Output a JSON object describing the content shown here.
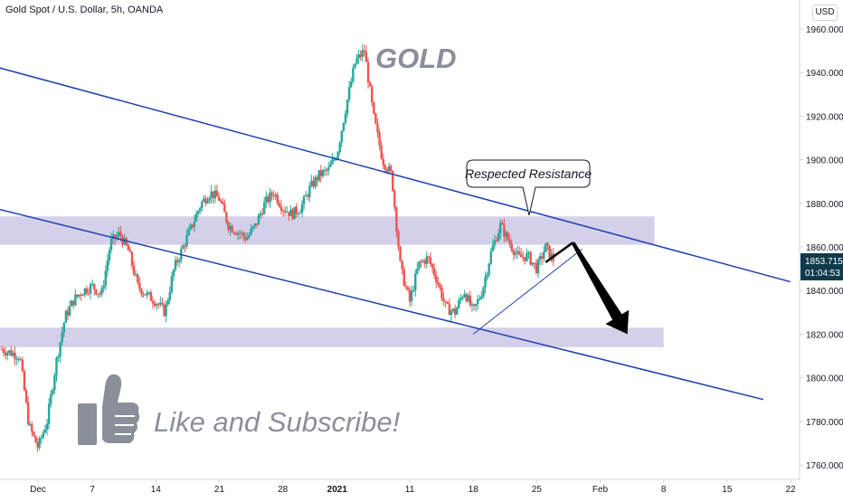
{
  "header": {
    "title": "Gold Spot / U.S. Dollar, 5h, OANDA"
  },
  "currency_button": "USD",
  "price_label": {
    "value": "1853.715",
    "countdown": "01:04:53"
  },
  "annotations": {
    "gold_label": "GOLD",
    "callout": "Respected Resistance",
    "cta": "Like and Subscribe!"
  },
  "colors": {
    "up_candle": "#26a69a",
    "down_candle": "#ef5350",
    "trendline": "#1e40af",
    "zone_fill": "#c5c0e3",
    "price_tag": "#0e3a4a",
    "axis_text": "#131722"
  },
  "chart_data": {
    "type": "candlestick",
    "title": "Gold Spot / U.S. Dollar, 5h, OANDA",
    "y_axis": {
      "ticks": [
        1760,
        1780,
        1800,
        1820,
        1840,
        1860,
        1880,
        1900,
        1920,
        1940,
        1960
      ],
      "tick_labels": [
        "1760.000",
        "1780.000",
        "1800.000",
        "1820.000",
        "1840.000",
        "1860.000",
        "1880.000",
        "1900.000",
        "1920.000",
        "1940.000",
        "1960.000"
      ],
      "range": [
        1756,
        1966
      ],
      "side": "right"
    },
    "x_axis": {
      "tick_labels": [
        "Dec",
        "7",
        "14",
        "21",
        "28",
        "2021",
        "11",
        "18",
        "25",
        "Feb",
        "8",
        "15",
        "22"
      ],
      "tick_dates": [
        "2020-12-01",
        "2020-12-07",
        "2020-12-14",
        "2020-12-21",
        "2020-12-28",
        "2021-01-03",
        "2021-01-11",
        "2021-01-18",
        "2021-01-25",
        "2021-02-01",
        "2021-02-08",
        "2021-02-15",
        "2021-02-22"
      ]
    },
    "price_path": [
      [
        "2020-11-27",
        1813
      ],
      [
        "2020-11-29",
        1810
      ],
      [
        "2020-11-30",
        1778
      ],
      [
        "2020-12-01",
        1768
      ],
      [
        "2020-12-02",
        1780
      ],
      [
        "2020-12-03",
        1807
      ],
      [
        "2020-12-04",
        1828
      ],
      [
        "2020-12-05",
        1836
      ],
      [
        "2020-12-06",
        1840
      ],
      [
        "2020-12-07",
        1842
      ],
      [
        "2020-12-08",
        1838
      ],
      [
        "2020-12-09",
        1862
      ],
      [
        "2020-12-10",
        1866
      ],
      [
        "2020-12-11",
        1858
      ],
      [
        "2020-12-12",
        1842
      ],
      [
        "2020-12-13",
        1838
      ],
      [
        "2020-12-14",
        1835
      ],
      [
        "2020-12-15",
        1830
      ],
      [
        "2020-12-16",
        1850
      ],
      [
        "2020-12-17",
        1860
      ],
      [
        "2020-12-18",
        1870
      ],
      [
        "2020-12-19",
        1880
      ],
      [
        "2020-12-20",
        1885
      ],
      [
        "2020-12-21",
        1882
      ],
      [
        "2020-12-22",
        1870
      ],
      [
        "2020-12-23",
        1867
      ],
      [
        "2020-12-24",
        1864
      ],
      [
        "2020-12-25",
        1870
      ],
      [
        "2020-12-26",
        1880
      ],
      [
        "2020-12-27",
        1885
      ],
      [
        "2020-12-28",
        1878
      ],
      [
        "2020-12-29",
        1875
      ],
      [
        "2020-12-30",
        1878
      ],
      [
        "2020-12-31",
        1887
      ],
      [
        "2021-01-01",
        1893
      ],
      [
        "2021-01-02",
        1895
      ],
      [
        "2021-01-03",
        1903
      ],
      [
        "2021-01-04",
        1925
      ],
      [
        "2021-01-05",
        1945
      ],
      [
        "2021-01-06",
        1950
      ],
      [
        "2021-01-07",
        1920
      ],
      [
        "2021-01-08",
        1900
      ],
      [
        "2021-01-09",
        1893
      ],
      [
        "2021-01-10",
        1850
      ],
      [
        "2021-01-11",
        1835
      ],
      [
        "2021-01-12",
        1852
      ],
      [
        "2021-01-13",
        1855
      ],
      [
        "2021-01-14",
        1845
      ],
      [
        "2021-01-15",
        1832
      ],
      [
        "2021-01-16",
        1830
      ],
      [
        "2021-01-17",
        1840
      ],
      [
        "2021-01-18",
        1830
      ],
      [
        "2021-01-19",
        1840
      ],
      [
        "2021-01-20",
        1858
      ],
      [
        "2021-01-21",
        1870
      ],
      [
        "2021-01-22",
        1862
      ],
      [
        "2021-01-23",
        1855
      ],
      [
        "2021-01-24",
        1856
      ],
      [
        "2021-01-25",
        1850
      ],
      [
        "2021-01-26",
        1860
      ],
      [
        "2021-01-27",
        1853
      ]
    ],
    "zones": [
      {
        "low": 1861,
        "high": 1874,
        "from": "2020-11-26",
        "to": "2021-02-07"
      },
      {
        "low": 1814,
        "high": 1823,
        "from": "2020-11-26",
        "to": "2021-02-08"
      }
    ],
    "trendlines": [
      {
        "from": [
          "2020-11-26",
          1943
        ],
        "to": [
          "2021-02-22",
          1844
        ]
      },
      {
        "from": [
          "2020-11-26",
          1878
        ],
        "to": [
          "2021-02-19",
          1790
        ]
      },
      {
        "from": [
          "2021-01-18",
          1820
        ],
        "to": [
          "2021-01-30",
          1859
        ]
      }
    ],
    "projection": [
      [
        "2021-01-26",
        1853
      ],
      [
        "2021-01-29",
        1862
      ],
      [
        "2021-02-04",
        1820
      ]
    ],
    "current_price": 1853.715,
    "grid": false,
    "legend": "none"
  }
}
